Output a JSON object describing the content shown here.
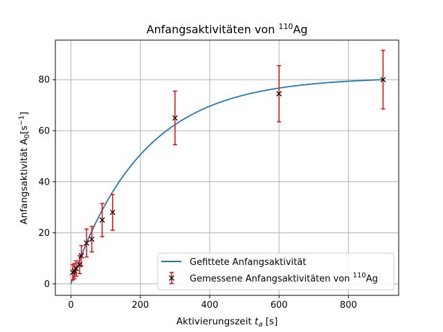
{
  "chart_data": {
    "type": "scatter",
    "title": {
      "main": "Anfangsaktivitäten von ",
      "sup": "110",
      "tail": "Ag"
    },
    "xlabel": {
      "main": "Aktivierungszeit ",
      "italic": "t",
      "sub": "a",
      "tail": " [s]"
    },
    "ylabel": {
      "main": "Anfangsaktivität A",
      "sub": "0",
      "mid": "[s",
      "sup": "−1",
      "tail": "]"
    },
    "xlim": [
      -45,
      945
    ],
    "ylim": [
      -4.5,
      95.5
    ],
    "xticks": [
      0,
      200,
      400,
      600,
      800
    ],
    "yticks": [
      0,
      20,
      40,
      60,
      80
    ],
    "xtick_labels": [
      "0",
      "200",
      "400",
      "600",
      "800"
    ],
    "ytick_labels": [
      "0",
      "20",
      "40",
      "60",
      "80"
    ],
    "grid": true,
    "legend_position": "lower-right",
    "colors": {
      "fit": "#1f77b4",
      "errorbar": "#ff0000",
      "marker": "#000000",
      "grid": "#b0b0b0"
    },
    "series": [
      {
        "kind": "line",
        "name": "Gefittete Anfangsaktivität",
        "model": {
          "A": 81,
          "lambda": 0.0049
        },
        "x_range": [
          0,
          900
        ]
      },
      {
        "kind": "errorbar",
        "name": {
          "main": "Gemessene Anfangsaktivitäten von ",
          "sup": "110",
          "tail": "Ag"
        },
        "points": [
          {
            "x": 5,
            "y": 4.5,
            "err": 3
          },
          {
            "x": 10,
            "y": 5,
            "err": 3
          },
          {
            "x": 15,
            "y": 6,
            "err": 3
          },
          {
            "x": 25,
            "y": 7.5,
            "err": 3.5
          },
          {
            "x": 30,
            "y": 11,
            "err": 4
          },
          {
            "x": 45,
            "y": 16,
            "err": 5.5
          },
          {
            "x": 60,
            "y": 17.5,
            "err": 5
          },
          {
            "x": 90,
            "y": 25,
            "err": 6.5
          },
          {
            "x": 120,
            "y": 28,
            "err": 7
          },
          {
            "x": 300,
            "y": 65,
            "err": 10.5
          },
          {
            "x": 600,
            "y": 74.5,
            "err": 11
          },
          {
            "x": 900,
            "y": 80,
            "err": 11.5
          }
        ]
      }
    ]
  }
}
